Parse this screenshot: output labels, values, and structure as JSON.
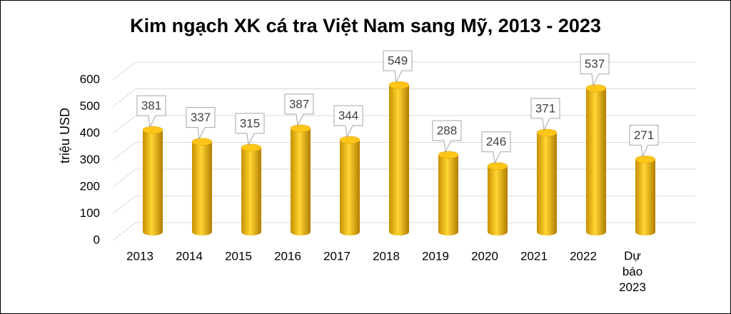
{
  "chart_data": {
    "type": "bar",
    "title": "Kim ngạch XK cá tra Việt Nam sang Mỹ, 2013 - 2023",
    "y_label": "triệu USD",
    "categories": [
      "2013",
      "2014",
      "2015",
      "2016",
      "2017",
      "2018",
      "2019",
      "2020",
      "2021",
      "2022",
      "Dự báo 2023"
    ],
    "values": [
      381,
      337,
      315,
      387,
      344,
      549,
      288,
      246,
      371,
      537,
      271
    ],
    "color": "#f2b800",
    "ylim": [
      0,
      600
    ],
    "yticks": [
      0,
      100,
      200,
      300,
      400,
      500,
      600
    ],
    "grid": true
  }
}
